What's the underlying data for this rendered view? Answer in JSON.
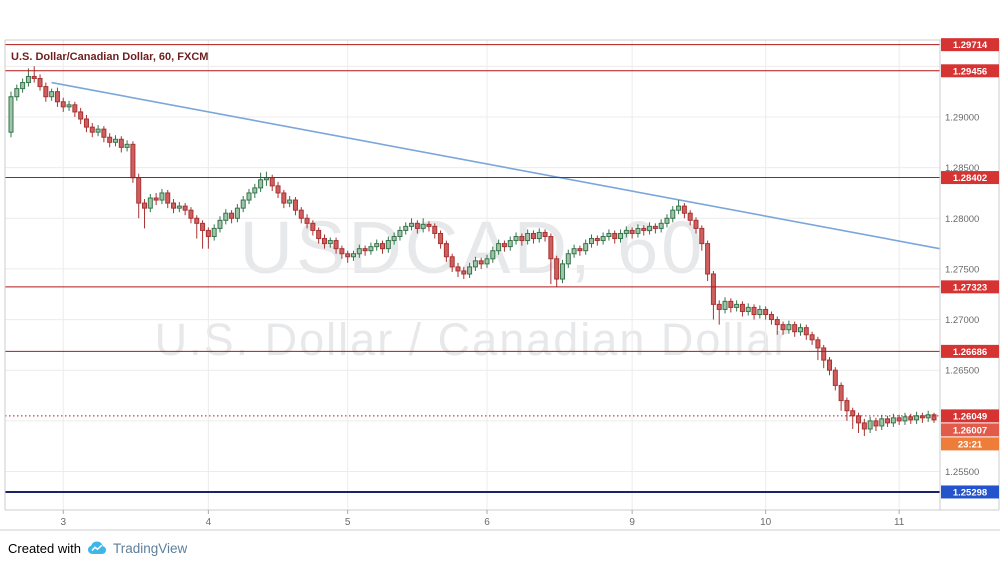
{
  "header": {
    "title": "U.S. Dollar/Canadian Dollar, 60, FXCM"
  },
  "watermark": {
    "line1": "USDCAD, 60",
    "line2": "U.S. Dollar / Canadian Dollar"
  },
  "footer": {
    "created_with": "Created with",
    "brand": "TradingView"
  },
  "colors": {
    "title_text": "#6d1f1f",
    "brand_text": "#5d7f9b",
    "grid": "#ececec",
    "border": "#cccccc",
    "axis_text": "#6a6a6a",
    "up_fill": "#9fc4a7",
    "up_border": "#35754c",
    "down_fill": "#cf5f5f",
    "down_border": "#a83232",
    "level_red": "#b01717",
    "level_blue": "#1a2366",
    "label_red": "#d63333",
    "label_blue": "#2453cb",
    "label_current": "#e25a4a",
    "label_countdown": "#ef7d3a",
    "trendline": "#7aa6d9",
    "logo_blue": "#3eb6e8"
  },
  "chart_data": {
    "type": "candlestick",
    "symbol": "USDCAD",
    "interval": "60",
    "exchange": "FXCM",
    "title": "U.S. Dollar/Canadian Dollar, 60, FXCM",
    "y_axis": {
      "range": [
        1.2512,
        1.2976
      ],
      "ticks": [
        {
          "label": "1.29000",
          "price": 1.29
        },
        {
          "label": "1.28500",
          "price": 1.285
        },
        {
          "label": "1.28000",
          "price": 1.28
        },
        {
          "label": "1.27500",
          "price": 1.275
        },
        {
          "label": "1.27000",
          "price": 1.27
        },
        {
          "label": "1.26500",
          "price": 1.265
        },
        {
          "label": "1.25500",
          "price": 1.255
        }
      ],
      "grid_prices": [
        1.295,
        1.29,
        1.285,
        1.28,
        1.275,
        1.27,
        1.265,
        1.26,
        1.255
      ]
    },
    "x_axis": {
      "labels": [
        {
          "label": "3",
          "index": 9
        },
        {
          "label": "4",
          "index": 34
        },
        {
          "label": "5",
          "index": 58
        },
        {
          "label": "6",
          "index": 82
        },
        {
          "label": "9",
          "index": 107
        },
        {
          "label": "10",
          "index": 130
        },
        {
          "label": "11",
          "index": 153
        }
      ]
    },
    "levels": [
      {
        "price": 1.29714,
        "label": "1.29714",
        "line": "solid",
        "color": "red"
      },
      {
        "price": 1.29456,
        "label": "1.29456",
        "line": "solid",
        "color": "red"
      },
      {
        "price": 1.28402,
        "label": "1.28402",
        "line": "solid",
        "color": "red"
      },
      {
        "price": 1.27323,
        "label": "1.27323",
        "line": "solid",
        "color": "red"
      },
      {
        "price": 1.26686,
        "label": "1.26686",
        "line": "solid",
        "color": "red"
      },
      {
        "price": 1.26049,
        "label": "1.26049",
        "line": "dotted",
        "color": "red"
      },
      {
        "price": 1.25298,
        "label": "1.25298",
        "line": "solid",
        "color": "blue"
      }
    ],
    "current_price": {
      "label": "1.26007",
      "countdown": "23:21"
    },
    "trendline": {
      "from": {
        "index": 7,
        "price": 1.2934
      },
      "to": {
        "index": 160,
        "price": 1.277
      }
    },
    "candles": [
      [
        1.2885,
        1.2925,
        1.288,
        1.292
      ],
      [
        1.292,
        1.2932,
        1.2916,
        1.2928
      ],
      [
        1.2928,
        1.2938,
        1.2924,
        1.2934
      ],
      [
        1.2934,
        1.2948,
        1.293,
        1.294
      ],
      [
        1.294,
        1.295,
        1.2934,
        1.2938
      ],
      [
        1.2938,
        1.2942,
        1.2926,
        1.293
      ],
      [
        1.293,
        1.2934,
        1.2915,
        1.292
      ],
      [
        1.292,
        1.2928,
        1.2916,
        1.2925
      ],
      [
        1.2925,
        1.2929,
        1.291,
        1.2915
      ],
      [
        1.2915,
        1.2919,
        1.2905,
        1.291
      ],
      [
        1.291,
        1.2916,
        1.2906,
        1.2912
      ],
      [
        1.2912,
        1.2915,
        1.29,
        1.2905
      ],
      [
        1.2905,
        1.2909,
        1.2893,
        1.2898
      ],
      [
        1.2898,
        1.2902,
        1.2885,
        1.289
      ],
      [
        1.289,
        1.2894,
        1.288,
        1.2885
      ],
      [
        1.2885,
        1.2892,
        1.2881,
        1.2888
      ],
      [
        1.2888,
        1.2891,
        1.2875,
        1.288
      ],
      [
        1.288,
        1.2884,
        1.287,
        1.2875
      ],
      [
        1.2875,
        1.2882,
        1.2871,
        1.2878
      ],
      [
        1.2878,
        1.2881,
        1.2865,
        1.287
      ],
      [
        1.287,
        1.2877,
        1.2866,
        1.2873
      ],
      [
        1.2873,
        1.2876,
        1.2835,
        1.284
      ],
      [
        1.284,
        1.2844,
        1.28,
        1.2815
      ],
      [
        1.2815,
        1.2819,
        1.279,
        1.281
      ],
      [
        1.281,
        1.2824,
        1.2806,
        1.282
      ],
      [
        1.282,
        1.2825,
        1.2813,
        1.2818
      ],
      [
        1.2818,
        1.2829,
        1.2814,
        1.2825
      ],
      [
        1.2825,
        1.2828,
        1.281,
        1.2815
      ],
      [
        1.2815,
        1.2819,
        1.2805,
        1.281
      ],
      [
        1.281,
        1.2816,
        1.2806,
        1.2812
      ],
      [
        1.2812,
        1.2815,
        1.2803,
        1.2808
      ],
      [
        1.2808,
        1.2811,
        1.2795,
        1.28
      ],
      [
        1.28,
        1.2803,
        1.278,
        1.2795
      ],
      [
        1.2795,
        1.2798,
        1.277,
        1.2788
      ],
      [
        1.2788,
        1.2791,
        1.277,
        1.2782
      ],
      [
        1.2782,
        1.2794,
        1.2778,
        1.279
      ],
      [
        1.279,
        1.2802,
        1.2786,
        1.2798
      ],
      [
        1.2798,
        1.2809,
        1.2794,
        1.2805
      ],
      [
        1.2805,
        1.2808,
        1.2795,
        1.28
      ],
      [
        1.28,
        1.2814,
        1.2796,
        1.281
      ],
      [
        1.281,
        1.2822,
        1.2806,
        1.2818
      ],
      [
        1.2818,
        1.2829,
        1.2814,
        1.2825
      ],
      [
        1.2825,
        1.2834,
        1.282,
        1.283
      ],
      [
        1.283,
        1.2845,
        1.2826,
        1.2838
      ],
      [
        1.2838,
        1.2846,
        1.2832,
        1.284
      ],
      [
        1.284,
        1.2843,
        1.2827,
        1.2832
      ],
      [
        1.2832,
        1.2836,
        1.282,
        1.2825
      ],
      [
        1.2825,
        1.2828,
        1.281,
        1.2815
      ],
      [
        1.2815,
        1.2822,
        1.2811,
        1.2818
      ],
      [
        1.2818,
        1.2821,
        1.2803,
        1.2808
      ],
      [
        1.2808,
        1.2811,
        1.2795,
        1.28
      ],
      [
        1.28,
        1.2804,
        1.279,
        1.2795
      ],
      [
        1.2795,
        1.2798,
        1.2783,
        1.2788
      ],
      [
        1.2788,
        1.2791,
        1.2775,
        1.278
      ],
      [
        1.278,
        1.2784,
        1.277,
        1.2775
      ],
      [
        1.2775,
        1.2781,
        1.2771,
        1.2778
      ],
      [
        1.2778,
        1.2781,
        1.2765,
        1.277
      ],
      [
        1.277,
        1.2773,
        1.276,
        1.2765
      ],
      [
        1.2765,
        1.2768,
        1.2756,
        1.2762
      ],
      [
        1.2762,
        1.2768,
        1.2758,
        1.2765
      ],
      [
        1.2765,
        1.2774,
        1.2761,
        1.277
      ],
      [
        1.277,
        1.2773,
        1.2763,
        1.2768
      ],
      [
        1.2768,
        1.2776,
        1.2764,
        1.2772
      ],
      [
        1.2772,
        1.2779,
        1.2768,
        1.2775
      ],
      [
        1.2775,
        1.2778,
        1.2765,
        1.277
      ],
      [
        1.277,
        1.2782,
        1.2766,
        1.2778
      ],
      [
        1.2778,
        1.2786,
        1.2774,
        1.2782
      ],
      [
        1.2782,
        1.2792,
        1.2778,
        1.2788
      ],
      [
        1.2788,
        1.2796,
        1.2784,
        1.2792
      ],
      [
        1.2792,
        1.28,
        1.2788,
        1.2795
      ],
      [
        1.2795,
        1.2798,
        1.2785,
        1.279
      ],
      [
        1.279,
        1.28,
        1.2786,
        1.2794
      ],
      [
        1.2794,
        1.2797,
        1.2787,
        1.2792
      ],
      [
        1.2792,
        1.2795,
        1.278,
        1.2785
      ],
      [
        1.2785,
        1.2788,
        1.277,
        1.2775
      ],
      [
        1.2775,
        1.2778,
        1.2757,
        1.2762
      ],
      [
        1.2762,
        1.2765,
        1.2747,
        1.2752
      ],
      [
        1.2752,
        1.2756,
        1.2742,
        1.2748
      ],
      [
        1.2748,
        1.2752,
        1.274,
        1.2745
      ],
      [
        1.2745,
        1.2756,
        1.2741,
        1.2752
      ],
      [
        1.2752,
        1.2762,
        1.2748,
        1.2758
      ],
      [
        1.2758,
        1.2761,
        1.275,
        1.2755
      ],
      [
        1.2755,
        1.2764,
        1.2751,
        1.276
      ],
      [
        1.276,
        1.2772,
        1.2756,
        1.2768
      ],
      [
        1.2768,
        1.2779,
        1.2764,
        1.2775
      ],
      [
        1.2775,
        1.2778,
        1.2767,
        1.2772
      ],
      [
        1.2772,
        1.2782,
        1.2768,
        1.2778
      ],
      [
        1.2778,
        1.2786,
        1.2774,
        1.2782
      ],
      [
        1.2782,
        1.2785,
        1.2773,
        1.2778
      ],
      [
        1.2778,
        1.2789,
        1.2774,
        1.2785
      ],
      [
        1.2785,
        1.2788,
        1.2775,
        1.278
      ],
      [
        1.278,
        1.279,
        1.2776,
        1.2786
      ],
      [
        1.2786,
        1.2789,
        1.2777,
        1.2782
      ],
      [
        1.2782,
        1.2785,
        1.2735,
        1.276
      ],
      [
        1.276,
        1.2763,
        1.2732,
        1.274
      ],
      [
        1.274,
        1.2759,
        1.2736,
        1.2755
      ],
      [
        1.2755,
        1.2769,
        1.2751,
        1.2765
      ],
      [
        1.2765,
        1.2774,
        1.2761,
        1.277
      ],
      [
        1.277,
        1.2773,
        1.2763,
        1.2768
      ],
      [
        1.2768,
        1.2779,
        1.2764,
        1.2775
      ],
      [
        1.2775,
        1.2784,
        1.2771,
        1.278
      ],
      [
        1.278,
        1.2783,
        1.2773,
        1.2778
      ],
      [
        1.2778,
        1.2786,
        1.2774,
        1.2782
      ],
      [
        1.2782,
        1.2789,
        1.2778,
        1.2785
      ],
      [
        1.2785,
        1.2788,
        1.2775,
        1.278
      ],
      [
        1.278,
        1.2789,
        1.2776,
        1.2785
      ],
      [
        1.2785,
        1.2792,
        1.2781,
        1.2788
      ],
      [
        1.2788,
        1.2791,
        1.278,
        1.2785
      ],
      [
        1.2785,
        1.2794,
        1.2781,
        1.279
      ],
      [
        1.279,
        1.2793,
        1.2783,
        1.2788
      ],
      [
        1.2788,
        1.2796,
        1.2784,
        1.2792
      ],
      [
        1.2792,
        1.2795,
        1.2785,
        1.279
      ],
      [
        1.279,
        1.2799,
        1.2786,
        1.2795
      ],
      [
        1.2795,
        1.2804,
        1.2791,
        1.28
      ],
      [
        1.28,
        1.2812,
        1.2796,
        1.2808
      ],
      [
        1.2808,
        1.2818,
        1.2804,
        1.2812
      ],
      [
        1.2812,
        1.2815,
        1.28,
        1.2805
      ],
      [
        1.2805,
        1.2808,
        1.2793,
        1.2798
      ],
      [
        1.2798,
        1.2801,
        1.2785,
        1.279
      ],
      [
        1.279,
        1.2793,
        1.2768,
        1.2775
      ],
      [
        1.2775,
        1.2778,
        1.2738,
        1.2745
      ],
      [
        1.2745,
        1.2748,
        1.27,
        1.2715
      ],
      [
        1.2715,
        1.2719,
        1.2695,
        1.271
      ],
      [
        1.271,
        1.2722,
        1.2706,
        1.2718
      ],
      [
        1.2718,
        1.2721,
        1.2707,
        1.2712
      ],
      [
        1.2712,
        1.2719,
        1.2708,
        1.2715
      ],
      [
        1.2715,
        1.2718,
        1.2703,
        1.2708
      ],
      [
        1.2708,
        1.2716,
        1.2704,
        1.2712
      ],
      [
        1.2712,
        1.2715,
        1.27,
        1.2705
      ],
      [
        1.2705,
        1.2714,
        1.2701,
        1.271
      ],
      [
        1.271,
        1.2713,
        1.27,
        1.2705
      ],
      [
        1.2705,
        1.2708,
        1.2695,
        1.27
      ],
      [
        1.27,
        1.2703,
        1.2685,
        1.2695
      ],
      [
        1.2695,
        1.2698,
        1.2685,
        1.269
      ],
      [
        1.269,
        1.2699,
        1.2686,
        1.2695
      ],
      [
        1.2695,
        1.2698,
        1.2683,
        1.2688
      ],
      [
        1.2688,
        1.2696,
        1.2684,
        1.2692
      ],
      [
        1.2692,
        1.2695,
        1.268,
        1.2685
      ],
      [
        1.2685,
        1.2688,
        1.2675,
        1.268
      ],
      [
        1.268,
        1.2683,
        1.266,
        1.2672
      ],
      [
        1.2672,
        1.2675,
        1.2652,
        1.266
      ],
      [
        1.266,
        1.2663,
        1.2645,
        1.265
      ],
      [
        1.265,
        1.2653,
        1.263,
        1.2635
      ],
      [
        1.2635,
        1.2638,
        1.261,
        1.262
      ],
      [
        1.262,
        1.2623,
        1.26,
        1.261
      ],
      [
        1.261,
        1.2613,
        1.2592,
        1.2605
      ],
      [
        1.2605,
        1.2608,
        1.2588,
        1.2598
      ],
      [
        1.2598,
        1.2602,
        1.2585,
        1.2592
      ],
      [
        1.2592,
        1.2604,
        1.2588,
        1.26
      ],
      [
        1.26,
        1.2603,
        1.259,
        1.2595
      ],
      [
        1.2595,
        1.2606,
        1.2591,
        1.2602
      ],
      [
        1.2602,
        1.2605,
        1.2594,
        1.2598
      ],
      [
        1.2598,
        1.2607,
        1.2594,
        1.2603
      ],
      [
        1.2603,
        1.2606,
        1.2596,
        1.26
      ],
      [
        1.26,
        1.2608,
        1.2596,
        1.2604
      ],
      [
        1.2604,
        1.2607,
        1.2597,
        1.2601
      ],
      [
        1.2601,
        1.2609,
        1.2597,
        1.2605
      ],
      [
        1.2605,
        1.2608,
        1.2598,
        1.2603
      ],
      [
        1.2603,
        1.261,
        1.2599,
        1.2606
      ],
      [
        1.2606,
        1.2608,
        1.2598,
        1.2601
      ]
    ]
  }
}
